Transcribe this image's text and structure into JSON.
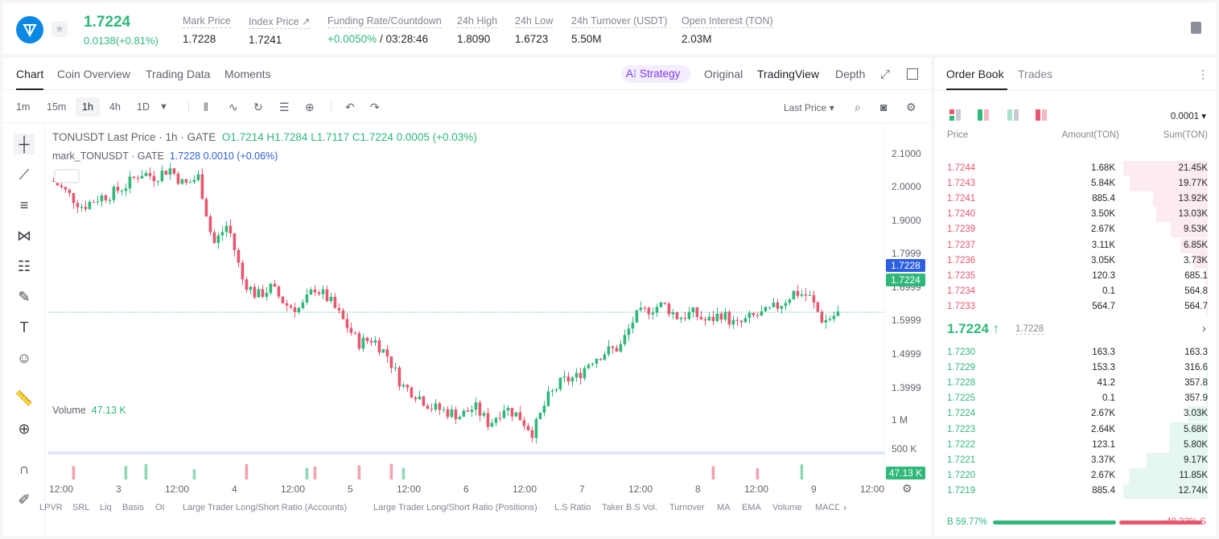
{
  "header": {
    "last_price": "1.7224",
    "change": "0.0138(+0.81%)",
    "stats": [
      {
        "label": "Mark Price",
        "value": "1.7228"
      },
      {
        "label": "Index Price ↗",
        "value": "1.7241"
      },
      {
        "label": "Funding Rate/Countdown",
        "value_green": "+0.0050%",
        "value": " / 03:28:46"
      },
      {
        "label": "24h High",
        "value": "1.8090"
      },
      {
        "label": "24h Low",
        "value": "1.6723"
      },
      {
        "label": "24h Turnover (USDT)",
        "value": "5.50M"
      },
      {
        "label": "Open Interest (TON)",
        "value": "2.03M"
      }
    ]
  },
  "chart_tabs": [
    "Chart",
    "Coin Overview",
    "Trading Data",
    "Moments"
  ],
  "view_tabs": {
    "strategy": "A⁝ Strategy",
    "original": "Original",
    "tradingview": "TradingView",
    "depth": "Depth"
  },
  "intervals": [
    "1m",
    "15m",
    "1h",
    "4h",
    "1D"
  ],
  "price_type": "Last Price ▾",
  "legend": {
    "title": "TONUSDT Last Price · 1h · GATE",
    "o": "O1.7214",
    "h": "H1.7284",
    "l": "L1.7117",
    "c": "C1.7224",
    "chg": "0.0005 (+0.03%)",
    "mark_name": "mark_TONUSDT · GATE",
    "mark_val": "1.7228  0.0010 (+0.06%)",
    "volume_label": "Volume",
    "volume_val": "47.13 K"
  },
  "chart_data": {
    "type": "candlestick",
    "symbol": "TONUSDT",
    "interval": "1h",
    "ylim": [
      1.3999,
      2.1
    ],
    "y_ticks": [
      "2.1000",
      "2.0000",
      "1.9000",
      "1.7999",
      "1.6999",
      "1.5999",
      "1.4999",
      "1.3999"
    ],
    "volume_ticks": [
      "1 M",
      "500 K"
    ],
    "x_ticks": [
      "12:00",
      "3",
      "12:00",
      "4",
      "12:00",
      "5",
      "12:00",
      "6",
      "12:00",
      "7",
      "12:00",
      "8",
      "12:00",
      "9",
      "12:00"
    ],
    "close_path": [
      2.03,
      2.0,
      1.97,
      1.99,
      2.0,
      2.02,
      2.05,
      2.04,
      2.06,
      2.02,
      2.04,
      1.88,
      1.93,
      1.8,
      1.76,
      1.78,
      1.74,
      1.73,
      1.78,
      1.75,
      1.7,
      1.65,
      1.66,
      1.62,
      1.55,
      1.53,
      1.5,
      1.49,
      1.48,
      1.5,
      1.46,
      1.5,
      1.48,
      1.44,
      1.52,
      1.56,
      1.57,
      1.61,
      1.63,
      1.64,
      1.71,
      1.73,
      1.74,
      1.71,
      1.72,
      1.7,
      1.72,
      1.69,
      1.71,
      1.72,
      1.74,
      1.77,
      1.76,
      1.7,
      1.72
    ],
    "last_price": 1.7224,
    "mark_price": 1.7228,
    "last_volume": "47.13K"
  },
  "price_tags": {
    "mark": "1.7228",
    "last": "1.7224",
    "volume": "47.13 K"
  },
  "indicators": [
    "LPVR",
    "SRL",
    "Liq",
    "Basis",
    "OI",
    "Large Trader Long/Short Ratio (Accounts)",
    "Large Trader Long/Short Ratio (Positions)",
    "L.S Ratio",
    "Taker B.S Vol.",
    "Turnover",
    "MA",
    "EMA",
    "Volume",
    "MACD"
  ],
  "orderbook": {
    "tabs": [
      "Order Book",
      "Trades"
    ],
    "precision": "0.0001 ▾",
    "headers": [
      "Price",
      "Amount(TON)",
      "Sum(TON)"
    ],
    "asks": [
      {
        "price": "1.7244",
        "amount": "1.68K",
        "sum": "21.45K",
        "depth": 1.0
      },
      {
        "price": "1.7243",
        "amount": "5.84K",
        "sum": "19.77K",
        "depth": 0.92
      },
      {
        "price": "1.7241",
        "amount": "885.4",
        "sum": "13.92K",
        "depth": 0.65
      },
      {
        "price": "1.7240",
        "amount": "3.50K",
        "sum": "13.03K",
        "depth": 0.61
      },
      {
        "price": "1.7239",
        "amount": "2.67K",
        "sum": "9.53K",
        "depth": 0.44
      },
      {
        "price": "1.7237",
        "amount": "3.11K",
        "sum": "6.85K",
        "depth": 0.32
      },
      {
        "price": "1.7236",
        "amount": "3.05K",
        "sum": "3.73K",
        "depth": 0.17
      },
      {
        "price": "1.7235",
        "amount": "120.3",
        "sum": "685.1",
        "depth": 0.03
      },
      {
        "price": "1.7234",
        "amount": "0.1",
        "sum": "564.8",
        "depth": 0.02
      },
      {
        "price": "1.7233",
        "amount": "564.7",
        "sum": "564.7",
        "depth": 0.02
      }
    ],
    "last": "1.7224 ↑",
    "mark": "1.7228",
    "bids": [
      {
        "price": "1.7230",
        "amount": "163.3",
        "sum": "163.3",
        "depth": 0.01
      },
      {
        "price": "1.7229",
        "amount": "153.3",
        "sum": "316.6",
        "depth": 0.02
      },
      {
        "price": "1.7228",
        "amount": "41.2",
        "sum": "357.8",
        "depth": 0.02
      },
      {
        "price": "1.7225",
        "amount": "0.1",
        "sum": "357.9",
        "depth": 0.02
      },
      {
        "price": "1.7224",
        "amount": "2.67K",
        "sum": "3.03K",
        "depth": 0.24
      },
      {
        "price": "1.7223",
        "amount": "2.64K",
        "sum": "5.68K",
        "depth": 0.45
      },
      {
        "price": "1.7222",
        "amount": "123.1",
        "sum": "5.80K",
        "depth": 0.46
      },
      {
        "price": "1.7221",
        "amount": "3.37K",
        "sum": "9.17K",
        "depth": 0.72
      },
      {
        "price": "1.7220",
        "amount": "2.67K",
        "sum": "11.85K",
        "depth": 0.93
      },
      {
        "price": "1.7219",
        "amount": "885.4",
        "sum": "12.74K",
        "depth": 1.0
      }
    ],
    "buy_ratio": "B 59.77%",
    "sell_ratio": "40.23% S",
    "buy_fraction": 0.5977
  },
  "colors": {
    "up": "#2fb87a",
    "down": "#e8566f",
    "mark_tag": "#2c5fe0",
    "accent": "#0a88e4"
  }
}
